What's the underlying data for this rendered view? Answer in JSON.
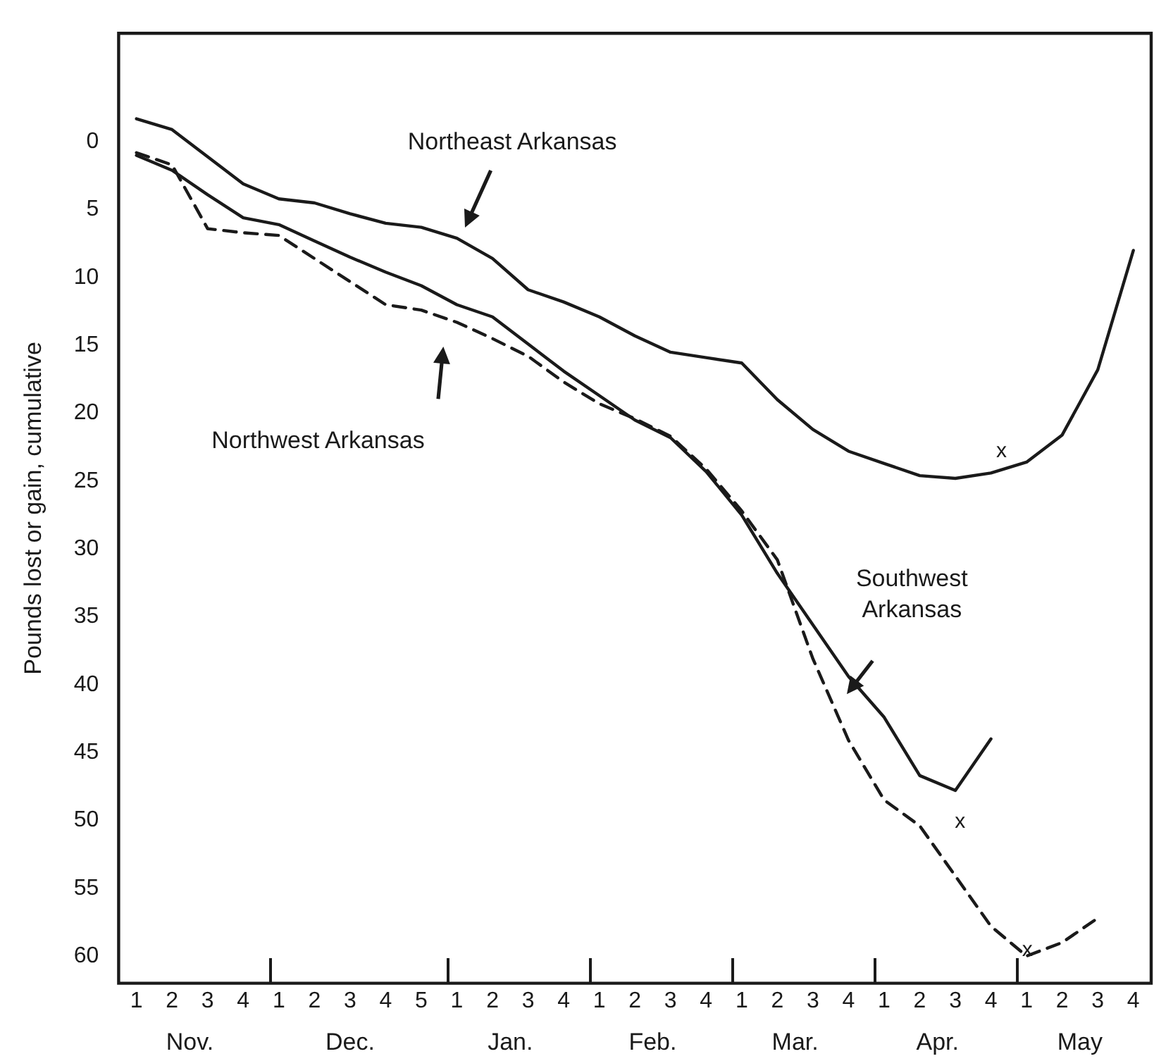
{
  "chart_data": {
    "type": "line",
    "ylabel": "Pounds lost or gain, cumulative",
    "ylim": [
      62,
      -8
    ],
    "yticks": [
      0,
      5,
      10,
      15,
      20,
      25,
      30,
      35,
      40,
      45,
      50,
      55,
      60
    ],
    "categories": [
      "1",
      "2",
      "3",
      "4",
      "1",
      "2",
      "3",
      "4",
      "5",
      "1",
      "2",
      "3",
      "4",
      "1",
      "2",
      "3",
      "4",
      "1",
      "2",
      "3",
      "4",
      "1",
      "2",
      "3",
      "4",
      "1",
      "2",
      "3",
      "4"
    ],
    "grid": false,
    "marker": "none",
    "series": [
      {
        "name": "Northeast Arkansas",
        "color": "#1a1a1a",
        "line_style": "solid",
        "values": [
          -1.7,
          -0.9,
          1.1,
          3.1,
          4.2,
          4.5,
          5.3,
          6.0,
          6.3,
          7.1,
          8.6,
          10.9,
          11.8,
          12.9,
          14.3,
          15.5,
          15.9,
          16.3,
          19.0,
          21.2,
          22.8,
          23.7,
          24.6,
          24.8,
          24.4,
          23.6,
          21.6,
          16.8,
          8
        ]
      },
      {
        "name": "Northwest Arkansas",
        "color": "#1a1a1a",
        "line_style": "dashed",
        "values": [
          0.8,
          1.7,
          6.4,
          6.7,
          6.9,
          8.6,
          10.3,
          12,
          12.4,
          13.3,
          14.5,
          15.8,
          17.7,
          19.3,
          20.4,
          21.7,
          24.1,
          27.2,
          30.8,
          38.1,
          44.1,
          48.5,
          50.4,
          54.1,
          57.8,
          60.0,
          59,
          57.2,
          null
        ]
      },
      {
        "name": "Southwest Arkansas",
        "color": "#1a1a1a",
        "line_style": "solid",
        "values": [
          1.0,
          2.1,
          3.9,
          5.6,
          6.1,
          7.3,
          8.5,
          9.6,
          10.6,
          12,
          12.9,
          14.9,
          16.9,
          18.7,
          20.5,
          21.8,
          24.3,
          27.5,
          31.8,
          35.6,
          39.4,
          42.4,
          46.7,
          47.8,
          44,
          null,
          null,
          null,
          null
        ]
      }
    ],
    "annotations": [
      "x",
      "x",
      "x",
      "Nov.",
      "Dec.",
      "Jan.",
      "Feb.",
      "Mar.",
      "Apr.",
      "May"
    ]
  }
}
